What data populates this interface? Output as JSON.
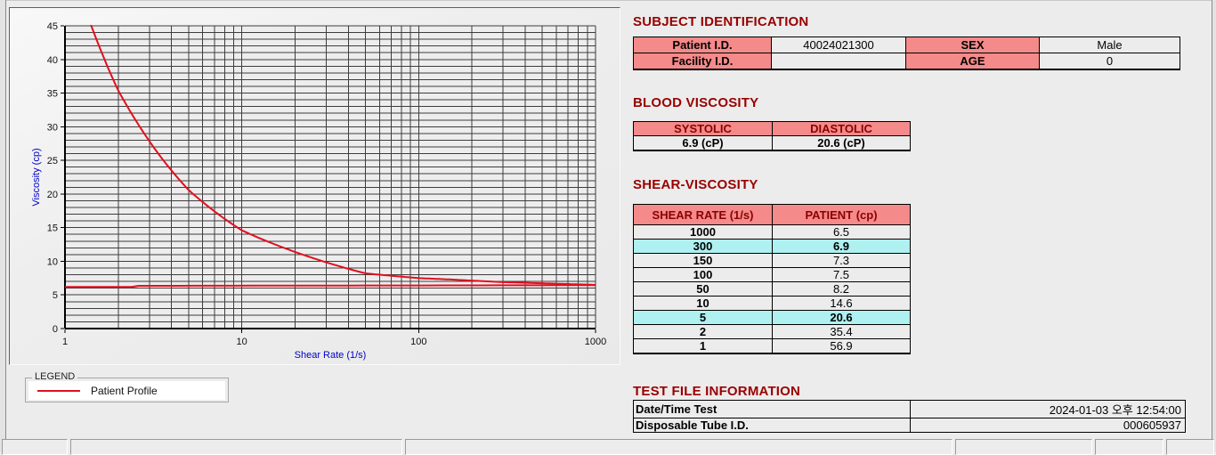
{
  "titles": {
    "subject": "SUBJECT IDENTIFICATION",
    "blood": "BLOOD VISCOSITY",
    "shear": "SHEAR-VISCOSITY",
    "testfile": "TEST FILE INFORMATION"
  },
  "subject_table": {
    "rows": [
      {
        "label1": "Patient I.D.",
        "value1": "40024021300",
        "label2": "SEX",
        "value2": "Male"
      },
      {
        "label1": "Facility I.D.",
        "value1": "",
        "label2": "AGE",
        "value2": "0"
      }
    ]
  },
  "blood_table": {
    "headers": [
      "SYSTOLIC",
      "DIASTOLIC"
    ],
    "values": [
      "6.9 (cP)",
      "20.6 (cP)"
    ]
  },
  "shear_table": {
    "headers": [
      "SHEAR RATE (1/s)",
      "PATIENT (cp)"
    ],
    "rows": [
      {
        "rate": "1000",
        "value": "6.5",
        "highlight": false
      },
      {
        "rate": "300",
        "value": "6.9",
        "highlight": true
      },
      {
        "rate": "150",
        "value": "7.3",
        "highlight": false
      },
      {
        "rate": "100",
        "value": "7.5",
        "highlight": false
      },
      {
        "rate": "50",
        "value": "8.2",
        "highlight": false
      },
      {
        "rate": "10",
        "value": "14.6",
        "highlight": false
      },
      {
        "rate": "5",
        "value": "20.6",
        "highlight": true
      },
      {
        "rate": "2",
        "value": "35.4",
        "highlight": false
      },
      {
        "rate": "1",
        "value": "56.9",
        "highlight": false
      }
    ]
  },
  "testfile_table": {
    "rows": [
      {
        "label": "Date/Time Test",
        "value": "2024-01-03  오후 12:54:00"
      },
      {
        "label": "Disposable Tube I.D.",
        "value": "000605937"
      }
    ]
  },
  "legend": {
    "title": "LEGEND",
    "items": [
      {
        "label": "Patient Profile",
        "color": "#e01020"
      }
    ]
  },
  "chart_data": {
    "type": "line",
    "title": "",
    "xlabel": "Shear Rate (1/s)",
    "ylabel": "Viscosity (cp)",
    "x_scale": "log",
    "xlim": [
      1,
      1000
    ],
    "ylim": [
      0,
      45
    ],
    "y_major_step": 5,
    "y_minor_step": 1,
    "x_ticks": [
      1,
      10,
      100,
      1000
    ],
    "grid": true,
    "legend_position": "below-left",
    "series": [
      {
        "name": "Patient Profile",
        "color": "#e01020",
        "x": [
          1,
          2,
          5,
          10,
          50,
          100,
          150,
          300,
          1000
        ],
        "y": [
          56.9,
          35.4,
          20.6,
          14.6,
          8.2,
          7.5,
          7.3,
          6.9,
          6.5
        ]
      },
      {
        "name": "Patient Profile (lower flat trace)",
        "color": "#e01020",
        "x": [
          1,
          2.4,
          2.6,
          1000
        ],
        "y": [
          6.2,
          6.2,
          6.35,
          6.45
        ]
      }
    ],
    "colors": {
      "grid": "#3d3d3d",
      "axis_label_blue": "#0000c8",
      "tick_text": "#111111",
      "plot_bg": "#ededed"
    }
  }
}
